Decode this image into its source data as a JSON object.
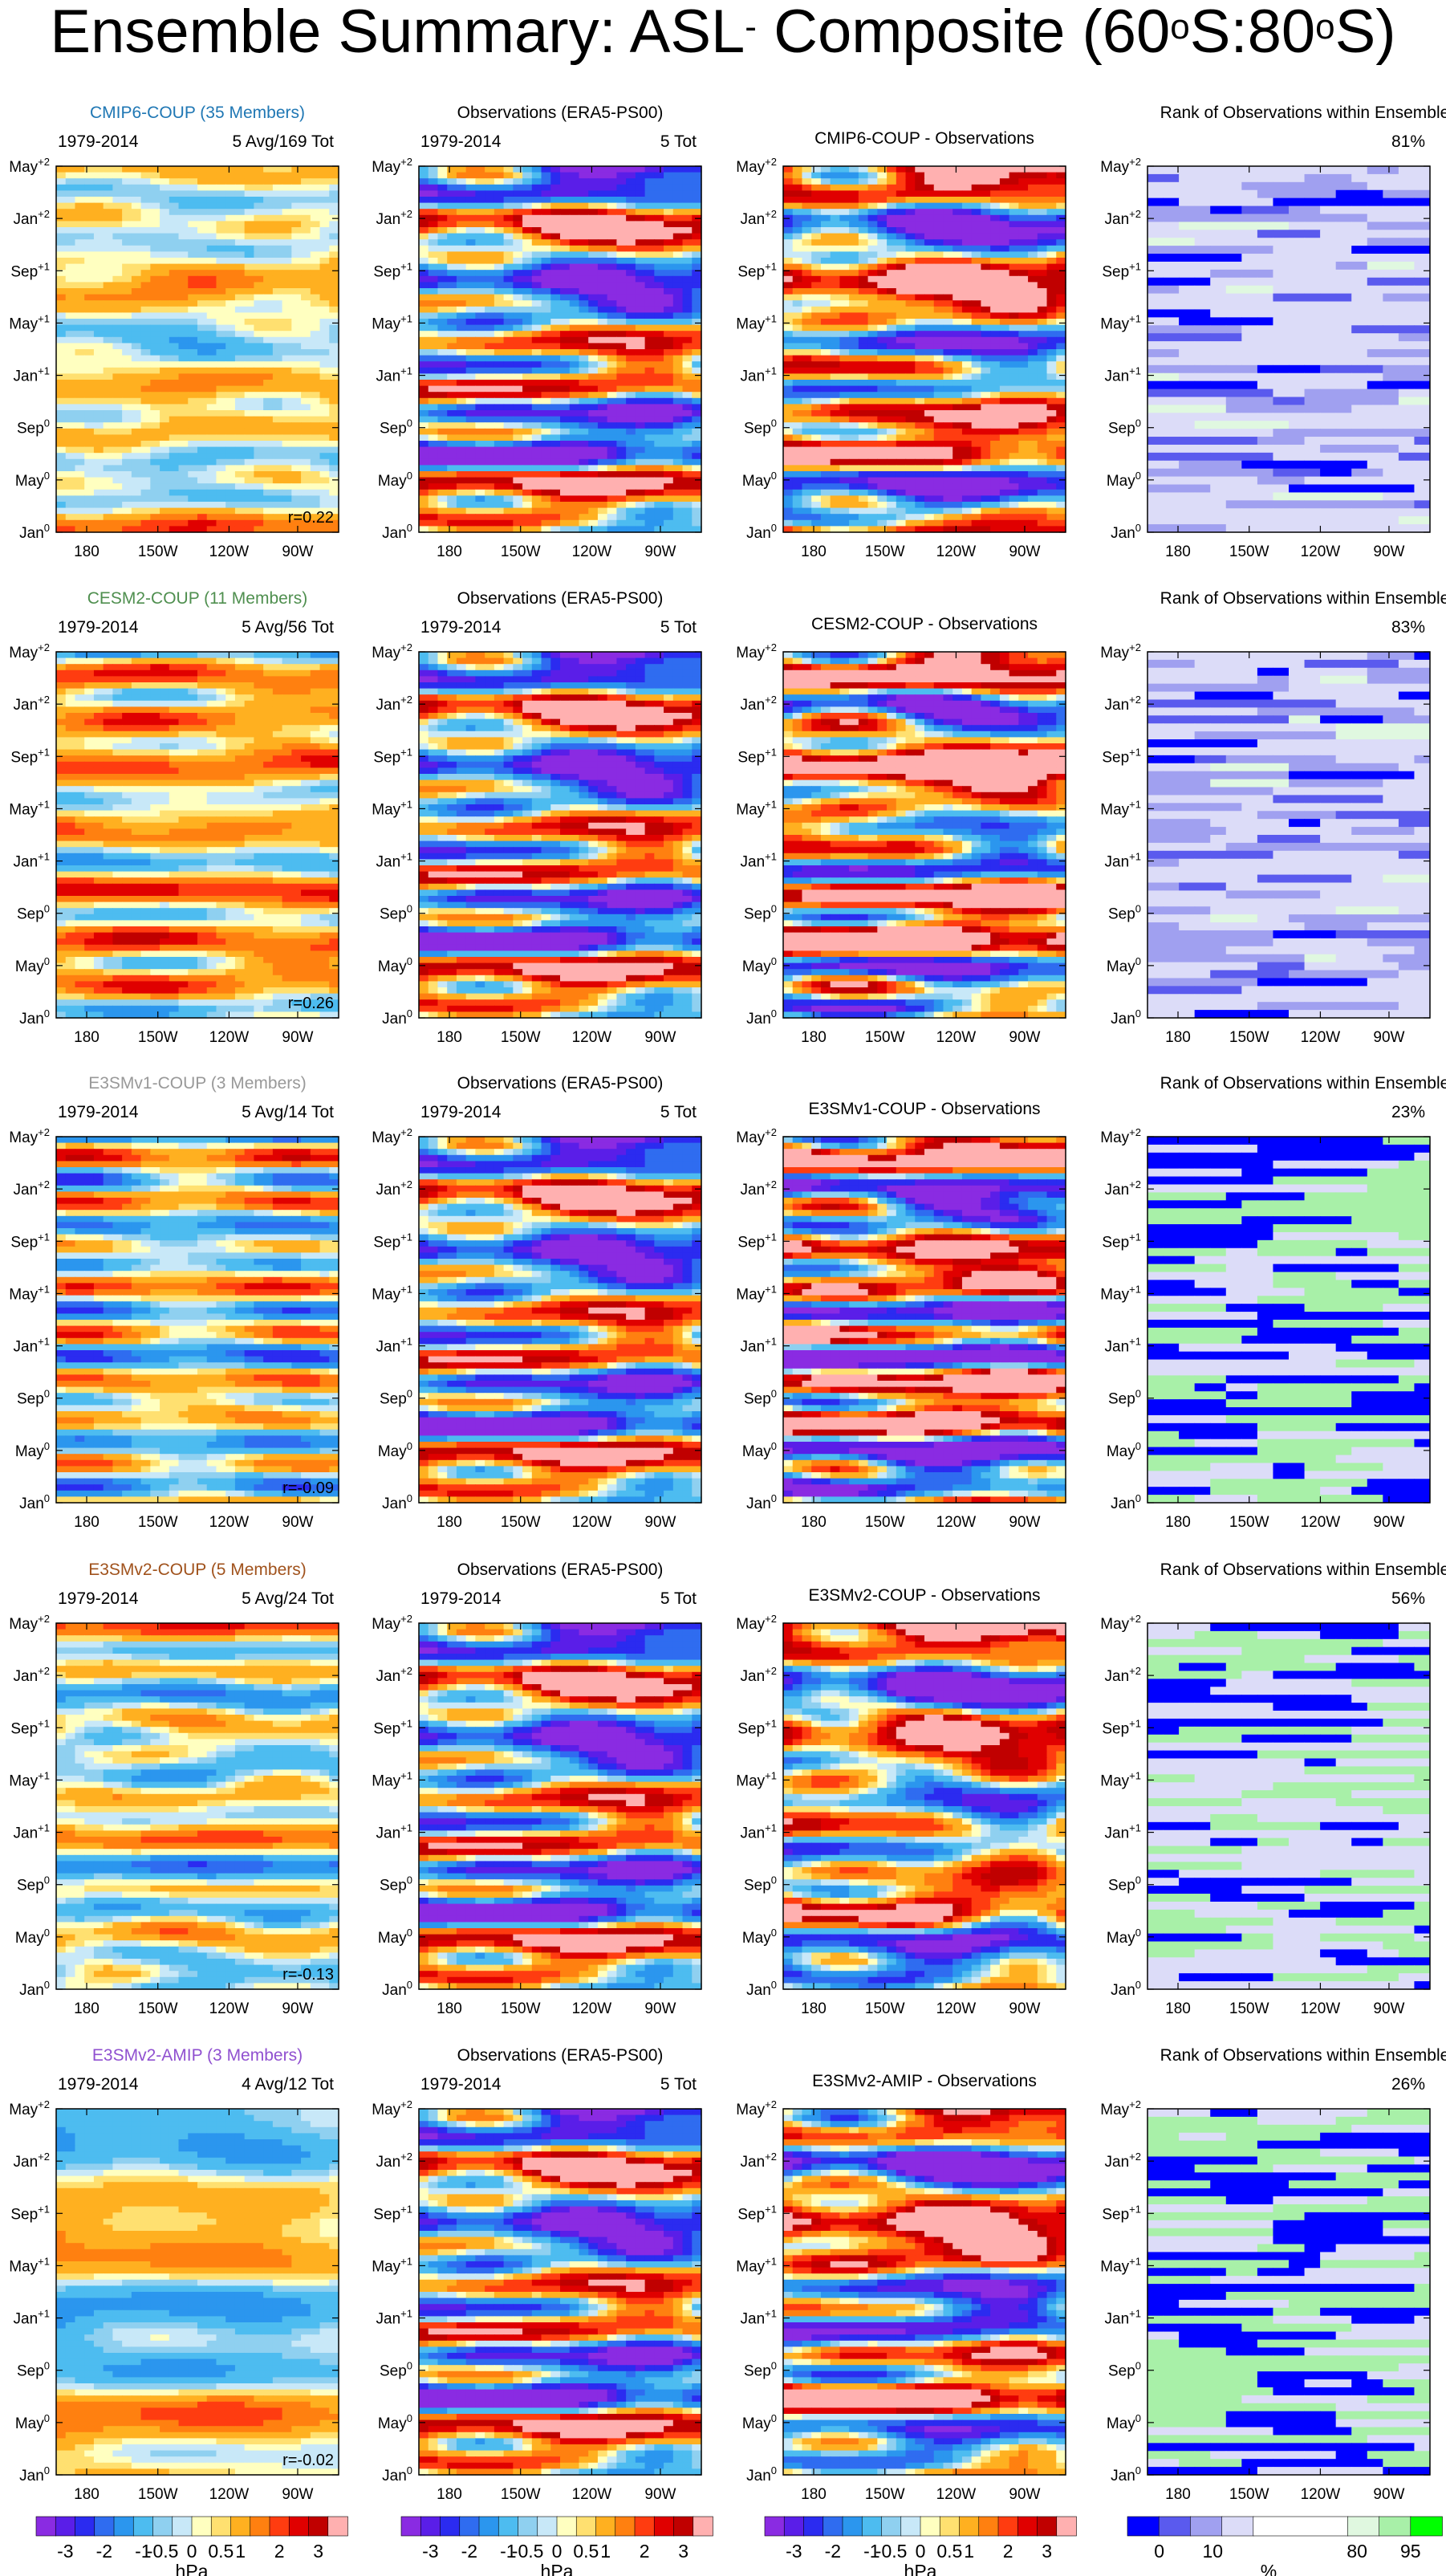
{
  "title": {
    "main": "Ensemble Summary: ASL",
    "sup1": "-",
    "part2": " Composite (60",
    "sup2": "o",
    "part3": "S:80",
    "sup3": "o",
    "part4": "S)"
  },
  "colors": {
    "model_title_colors": [
      "#1f77b4",
      "#4f8f4f",
      "#999999",
      "#a0521c",
      "#9050d0"
    ]
  },
  "chart_data": {
    "type": "heatmap",
    "description_units": "hPa",
    "y_tick_labels": [
      {
        "base": "Jan",
        "sup": "0"
      },
      {
        "base": "May",
        "sup": "0"
      },
      {
        "base": "Sep",
        "sup": "0"
      },
      {
        "base": "Jan",
        "sup": "+1"
      },
      {
        "base": "May",
        "sup": "+1"
      },
      {
        "base": "Sep",
        "sup": "+1"
      },
      {
        "base": "Jan",
        "sup": "+2"
      },
      {
        "base": "May",
        "sup": "+2"
      }
    ],
    "x_tick_labels": [
      "180",
      "150W",
      "120W",
      "90W"
    ],
    "rows": [
      {
        "model_title": "CMIP6-COUP (35 Members)",
        "period": "1979-2014",
        "model_count": "5 Avg/169 Tot",
        "obs_title": "Observations (ERA5-PS00)",
        "obs_count": "5 Tot",
        "diff_title": "CMIP6-COUP - Observations",
        "rank_title": "Rank of Observations within Ensemble",
        "rank_percent": "81%",
        "correlation": "r=0.22",
        "seed": 11
      },
      {
        "model_title": "CESM2-COUP (11 Members)",
        "period": "1979-2014",
        "model_count": "5 Avg/56 Tot",
        "obs_title": "Observations (ERA5-PS00)",
        "obs_count": "5 Tot",
        "diff_title": "CESM2-COUP - Observations",
        "rank_title": "Rank of Observations within Ensemble",
        "rank_percent": "83%",
        "correlation": "r=0.26",
        "seed": 23
      },
      {
        "model_title": "E3SMv1-COUP (3 Members)",
        "period": "1979-2014",
        "model_count": "5 Avg/14 Tot",
        "obs_title": "Observations (ERA5-PS00)",
        "obs_count": "5 Tot",
        "diff_title": "E3SMv1-COUP - Observations",
        "rank_title": "Rank of Observations within Ensemble",
        "rank_percent": "23%",
        "correlation": "r=-0.09",
        "seed": 37
      },
      {
        "model_title": "E3SMv2-COUP (5 Members)",
        "period": "1979-2014",
        "model_count": "5 Avg/24 Tot",
        "obs_title": "Observations (ERA5-PS00)",
        "obs_count": "5 Tot",
        "diff_title": "E3SMv2-COUP - Observations",
        "rank_title": "Rank of Observations within Ensemble",
        "rank_percent": "56%",
        "correlation": "r=-0.13",
        "seed": 41
      },
      {
        "model_title": "E3SMv2-AMIP (3 Members)",
        "period": "1979-2014",
        "model_count": "4 Avg/12 Tot",
        "obs_title": "Observations (ERA5-PS00)",
        "obs_count": "5 Tot",
        "diff_title": "E3SMv2-AMIP - Observations",
        "rank_title": "Rank of Observations within Ensemble",
        "rank_percent": "26%",
        "correlation": "r=-0.02",
        "seed": 53
      }
    ],
    "contour_levels": [
      -3,
      -2.5,
      -2,
      -1.5,
      -1,
      -0.5,
      -0.25,
      0,
      0.25,
      0.5,
      1,
      1.5,
      2,
      2.5,
      3
    ],
    "contour_colors": [
      "#8a2be2",
      "#5a1ee8",
      "#2b2bf0",
      "#2f6cf0",
      "#2b96ee",
      "#4dbcf0",
      "#8fd0f0",
      "#c8e8f8",
      "#ffffc0",
      "#ffe070",
      "#ffb020",
      "#ff8010",
      "#ff3c10",
      "#e00000",
      "#c00000",
      "#ffb0b0"
    ],
    "hpa_colorbar": {
      "tick_labels": [
        "-3",
        "-2",
        "-1",
        "-0.5",
        "0",
        "0.5",
        "1",
        "2",
        "3"
      ],
      "units": "hPa"
    },
    "rank_levels": [
      0,
      5,
      10,
      20,
      80,
      90,
      95,
      100
    ],
    "rank_colors": [
      "#0000ff",
      "#5a5aee",
      "#a0a0f0",
      "#dcdcf8",
      "#ffffff",
      "#e0f8e0",
      "#a8f0a8",
      "#00ff00"
    ],
    "rank_colorbar": {
      "tick_labels": [
        "0",
        "10",
        "80",
        "95"
      ],
      "units": "%"
    }
  }
}
